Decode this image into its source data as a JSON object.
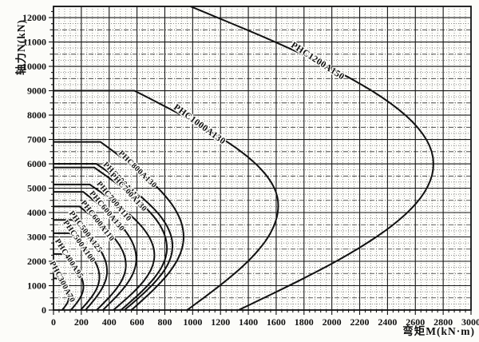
{
  "figure": {
    "background": "#fcfcf9",
    "ink_color": "#111111",
    "grid_major_color": "#151515",
    "grid_mid_color": "#333333",
    "grid_minor_color": "#6a6a6a"
  },
  "chart_data": {
    "type": "line",
    "title": "",
    "xlabel": "弯矩M(kN·m)",
    "ylabel": "轴力N(kN)",
    "xlim": [
      0,
      3000
    ],
    "ylim": [
      0,
      12460
    ],
    "x_major_step": 200,
    "x_minor_step": 40,
    "y_major_step": 1000,
    "y_minor_step": 250,
    "grid": "on",
    "legend_position": "labels-on-curves",
    "x_ticks": [
      0,
      200,
      400,
      600,
      800,
      1000,
      1200,
      1400,
      1600,
      1800,
      2000,
      2200,
      2400,
      2600,
      2800,
      3000
    ],
    "y_ticks": [
      0,
      1000,
      2000,
      3000,
      4000,
      5000,
      6000,
      7000,
      8000,
      9000,
      10000,
      11000,
      12000
    ],
    "series_note": "Each curve: axial force N vs bending moment M interaction envelope. n_max = N at M=0 (flat top until m_flat), apex at (m_max, n_bal), returns to x-axis at m_0.",
    "series": [
      {
        "name": "PHC1200A150",
        "n_max": 12470,
        "m_flat": 980,
        "m_max": 2730,
        "n_bal": 6000,
        "m_0": 1330,
        "label_n": 10200,
        "label_angle": 33,
        "label_size": 11.5
      },
      {
        "name": "PHC1000A130",
        "n_max": 9000,
        "m_flat": 581,
        "m_max": 1615,
        "n_bal": 4300,
        "m_0": 960,
        "label_n": 7600,
        "label_angle": 36,
        "label_size": 11.5
      },
      {
        "name": "PHC800A130",
        "n_max": 6900,
        "m_flat": 337,
        "m_max": 935,
        "n_bal": 3000,
        "m_0": 560,
        "label_n": 5760,
        "label_angle": 44,
        "label_size": 10
      },
      {
        "name": "PHC800A110",
        "n_max": 6000,
        "m_flat": 308,
        "m_max": 855,
        "n_bal": 2620,
        "m_0": 510,
        "label_n": 5280,
        "label_angle": 46,
        "label_size": 10
      },
      {
        "name": "PHC700A130",
        "n_max": 5850,
        "m_flat": 293,
        "m_max": 815,
        "n_bal": 2550,
        "m_0": 485,
        "label_n": 4830,
        "label_angle": 47,
        "label_size": 10
      },
      {
        "name": "PHC700A110",
        "n_max": 5150,
        "m_flat": 261,
        "m_max": 725,
        "n_bal": 2250,
        "m_0": 430,
        "label_n": 4450,
        "label_angle": 50,
        "label_size": 10
      },
      {
        "name": "PHC600A130",
        "n_max": 4850,
        "m_flat": 214,
        "m_max": 595,
        "n_bal": 2100,
        "m_0": 355,
        "label_n": 4050,
        "label_angle": 50,
        "label_size": 10
      },
      {
        "name": "PHC600A110",
        "n_max": 4250,
        "m_flat": 187,
        "m_max": 520,
        "n_bal": 1850,
        "m_0": 310,
        "label_n": 3650,
        "label_angle": 52,
        "label_size": 10
      },
      {
        "name": "PHC500A125",
        "n_max": 3700,
        "m_flat": 139,
        "m_max": 385,
        "n_bal": 1600,
        "m_0": 230,
        "label_n": 3200,
        "label_angle": 53,
        "label_size": 10
      },
      {
        "name": "PHC500A100",
        "n_max": 3150,
        "m_flat": 119,
        "m_max": 330,
        "n_bal": 1350,
        "m_0": 195,
        "label_n": 2800,
        "label_angle": 55,
        "label_size": 10
      },
      {
        "name": "PHC400A95",
        "n_max": 2300,
        "m_flat": 77,
        "m_max": 215,
        "n_bal": 950,
        "m_0": 125,
        "label_n": 2100,
        "label_angle": 57,
        "label_size": 10
      },
      {
        "name": "PHC300A70",
        "n_max": 1300,
        "m_flat": 40,
        "m_max": 110,
        "n_bal": 520,
        "m_0": 62,
        "label_n": 1150,
        "label_angle": 62,
        "label_size": 10
      }
    ]
  }
}
